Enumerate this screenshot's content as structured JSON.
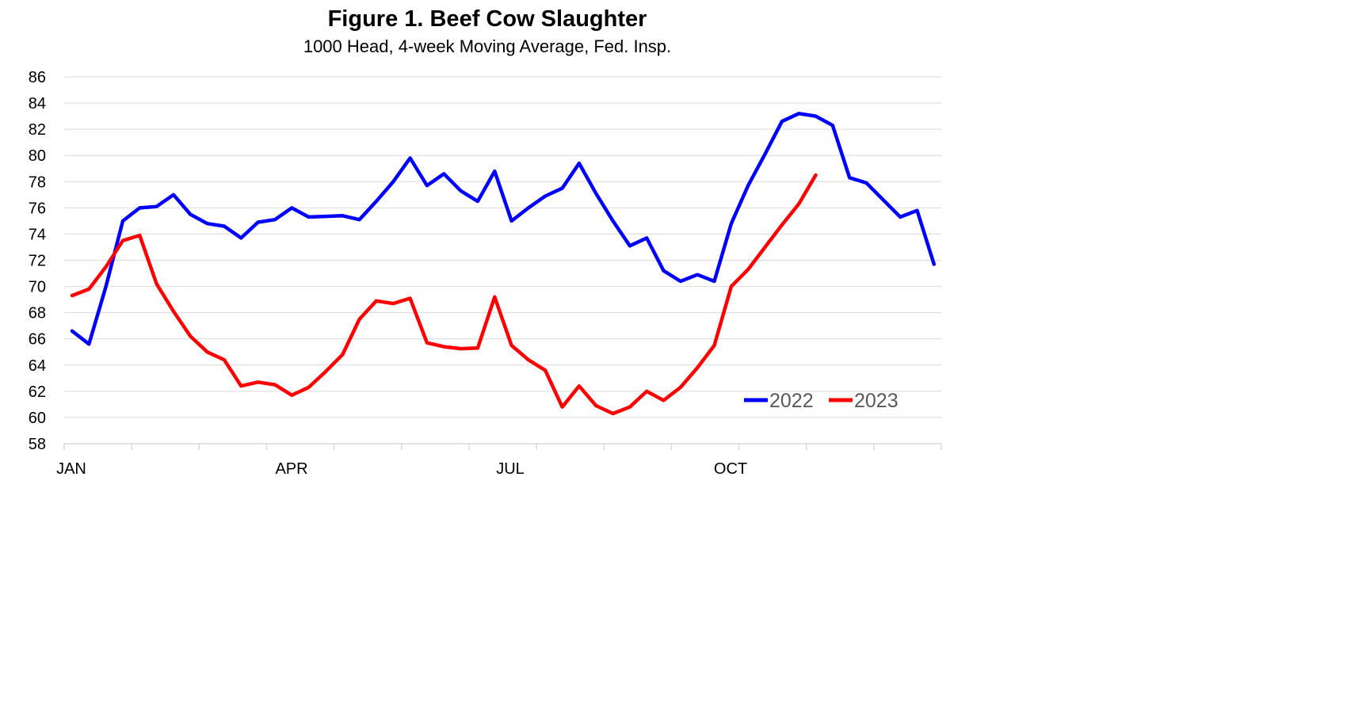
{
  "chart_data": {
    "type": "line",
    "title": "Figure 1. Beef Cow Slaughter",
    "subtitle": "1000 Head, 4-week Moving Average, Fed. Insp.",
    "xlabel": "",
    "ylabel": "",
    "ylim": [
      58,
      86
    ],
    "yticks": [
      "86",
      "84",
      "82",
      "80",
      "78",
      "76",
      "74",
      "72",
      "70",
      "68",
      "66",
      "64",
      "62",
      "60",
      "58"
    ],
    "x_tick_labels": [
      "JAN",
      "APR",
      "JUL",
      "OCT"
    ],
    "x_unit": "week of year",
    "grid": true,
    "legend_position": "bottom-right",
    "series": [
      {
        "name": "2022",
        "color": "#0000FF",
        "values": [
          66.6,
          65.6,
          70.0,
          75.0,
          76.0,
          76.1,
          77.0,
          75.5,
          74.8,
          74.6,
          73.7,
          74.9,
          75.1,
          76.0,
          75.3,
          75.35,
          75.4,
          75.1,
          76.5,
          78.0,
          79.8,
          77.7,
          78.6,
          77.3,
          76.5,
          78.8,
          75.0,
          76.0,
          76.9,
          77.5,
          79.4,
          77.1,
          75.0,
          73.1,
          73.7,
          71.2,
          70.4,
          70.9,
          70.4,
          74.8,
          77.7,
          80.1,
          82.6,
          83.2,
          83.0,
          82.3,
          78.3,
          77.9,
          76.6,
          75.3,
          75.8,
          71.7
        ]
      },
      {
        "name": "2023",
        "color": "#FF0000",
        "values": [
          69.3,
          69.8,
          71.5,
          73.5,
          73.9,
          70.2,
          68.1,
          66.2,
          65.0,
          64.4,
          62.4,
          62.7,
          62.5,
          61.7,
          62.3,
          63.5,
          64.8,
          67.5,
          68.9,
          68.7,
          69.1,
          65.7,
          65.4,
          65.25,
          65.3,
          69.2,
          65.5,
          64.4,
          63.6,
          60.8,
          62.4,
          60.9,
          60.3,
          60.8,
          62.0,
          61.3,
          62.3,
          63.8,
          65.5,
          70.0,
          71.3,
          73.0,
          74.7,
          76.3,
          78.5
        ]
      }
    ]
  }
}
